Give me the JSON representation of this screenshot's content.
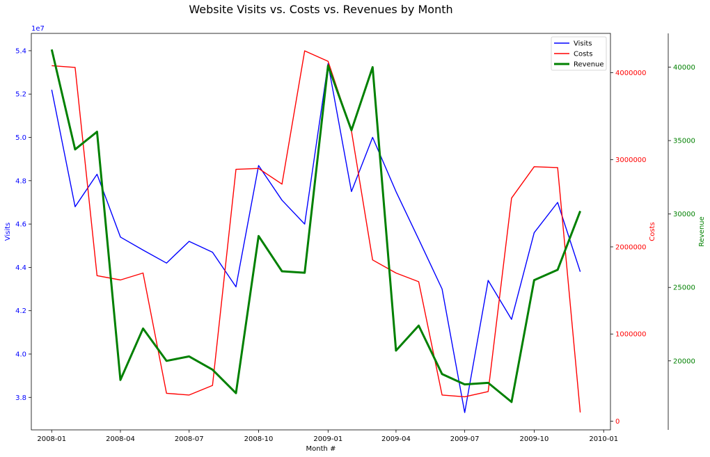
{
  "chart_data": {
    "type": "line",
    "title": "Website Visits vs. Costs vs. Revenues by Month",
    "xlabel": "Month #",
    "x": [
      "2008-01",
      "2008-02",
      "2008-03",
      "2008-04",
      "2008-05",
      "2008-06",
      "2008-07",
      "2008-08",
      "2008-09",
      "2008-10",
      "2008-11",
      "2008-12",
      "2009-01",
      "2009-02",
      "2009-03",
      "2009-04",
      "2009-05",
      "2009-06",
      "2009-07",
      "2009-08",
      "2009-09",
      "2009-10",
      "2009-11",
      "2009-12"
    ],
    "x_tick_labels": [
      "2008-01",
      "2008-04",
      "2008-07",
      "2008-10",
      "2009-01",
      "2009-04",
      "2009-07",
      "2009-10",
      "2010-01"
    ],
    "x_range": [
      "2007-12-05",
      "2010-01-10"
    ],
    "legend": {
      "placement": "top-right",
      "entries": [
        "Visits",
        "Costs",
        "Revenue"
      ]
    },
    "axes": [
      {
        "id": "visits",
        "label": "Visits",
        "side": "left",
        "color": "#0000ff",
        "ylim": [
          36500000,
          54800000
        ],
        "offset_text": "1e7",
        "ticks": [
          3.8,
          4.0,
          4.2,
          4.4,
          4.6,
          4.8,
          5.0,
          5.2,
          5.4
        ],
        "tick_scale": 10000000
      },
      {
        "id": "costs",
        "label": "Costs",
        "side": "right",
        "color": "#ff0000",
        "ylim": [
          -100000,
          4450000
        ],
        "ticks": [
          0,
          1000000,
          2000000,
          3000000,
          4000000
        ],
        "tick_scale": 1
      },
      {
        "id": "revenue",
        "label": "Revenue",
        "side": "right-outer",
        "color": "#008000",
        "ylim": [
          15300000,
          42300000
        ],
        "ticks": [
          20000,
          25000,
          30000,
          35000,
          40000
        ],
        "tick_scale": 1,
        "ylim_units": [
          15300,
          42300
        ]
      }
    ],
    "series": [
      {
        "name": "Visits",
        "axis": "visits",
        "color": "#0000ff",
        "width": 1.4,
        "values": [
          52200000,
          46800000,
          48300000,
          45400000,
          44800000,
          44200000,
          45200000,
          44700000,
          43100000,
          48700000,
          47100000,
          46000000,
          53400000,
          47500000,
          50000000,
          47500000,
          45300000,
          43000000,
          37300000,
          43400000,
          41600000,
          45600000,
          47000000,
          43800000
        ]
      },
      {
        "name": "Costs",
        "axis": "costs",
        "color": "#ff0000",
        "width": 1.4,
        "values": [
          4080000,
          4060000,
          1670000,
          1620000,
          1700000,
          320000,
          300000,
          410000,
          2890000,
          2900000,
          2720000,
          4250000,
          4130000,
          3330000,
          1850000,
          1700000,
          1600000,
          300000,
          280000,
          340000,
          2560000,
          2920000,
          2910000,
          100000
        ]
      },
      {
        "name": "Revenue",
        "axis": "revenue",
        "color": "#008000",
        "width": 3,
        "values": [
          41200,
          34400,
          35600,
          18700,
          22200,
          20000,
          20300,
          19400,
          17800,
          28500,
          26100,
          26000,
          40100,
          35700,
          40000,
          20700,
          22400,
          19100,
          18400,
          18500,
          17200,
          25500,
          26200,
          30200
        ]
      }
    ]
  }
}
